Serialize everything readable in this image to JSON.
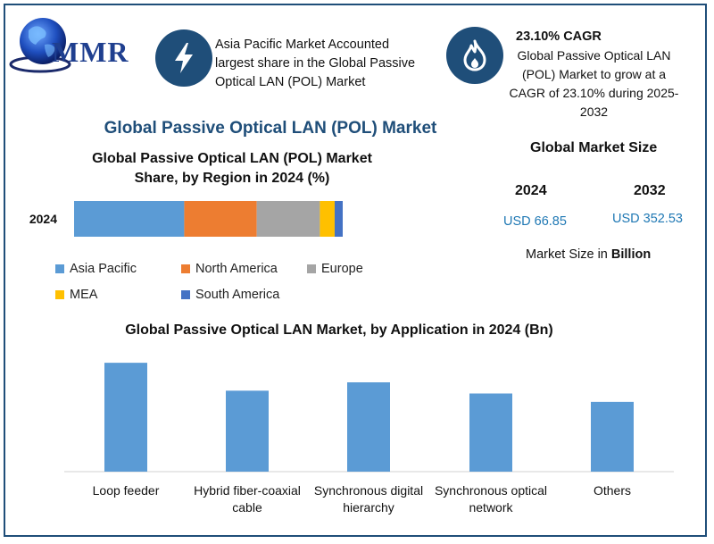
{
  "logo": {
    "text": "MMR"
  },
  "header": {
    "info_text": "Asia Pacific Market Accounted largest share in the Global Passive Optical LAN (POL) Market",
    "cagr_title": "23.10% CAGR",
    "cagr_desc": "Global Passive Optical LAN (POL) Market to grow at a CAGR of 23.10% during 2025-2032",
    "bolt_icon": "lightning-bolt-icon",
    "flame_icon": "flame-icon"
  },
  "main_title": "Global Passive Optical LAN (POL) Market",
  "market_size": {
    "title": "Global Market Size",
    "year_a": "2024",
    "year_b": "2032",
    "value_a": "USD 66.85",
    "value_b": "USD 352.53",
    "note_prefix": "Market Size in ",
    "note_unit": "Billion"
  },
  "colors": {
    "brand": "#1f4e79",
    "asia_pacific": "#5b9bd5",
    "north_america": "#ed7d31",
    "europe": "#a5a5a5",
    "mea": "#ffc000",
    "south_america": "#4472c4"
  },
  "chart_data": [
    {
      "type": "bar",
      "orientation": "horizontal-stacked",
      "title": "Global Passive Optical LAN (POL) Market Share, by Region in 2024 (%)",
      "title_line1": "Global Passive Optical LAN (POL) Market",
      "title_line2": "Share, by Region in 2024 (%)",
      "categories": [
        "2024"
      ],
      "series": [
        {
          "name": "Asia Pacific",
          "values": [
            41
          ]
        },
        {
          "name": "North America",
          "values": [
            27
          ]
        },
        {
          "name": "Europe",
          "values": [
            23.5
          ]
        },
        {
          "name": "MEA",
          "values": [
            5.5
          ]
        },
        {
          "name": "South America",
          "values": [
            3
          ]
        }
      ],
      "xlim": [
        0,
        100
      ],
      "legend": "bottom"
    },
    {
      "type": "bar",
      "title": "Global Passive Optical LAN Market, by Application in 2024 (Bn)",
      "categories": [
        "Loop feeder",
        "Hybrid fiber-coaxial cable",
        "Synchronous digital hierarchy",
        "Synchronous optical network",
        "Others"
      ],
      "values": [
        19.5,
        14.5,
        16.0,
        14.0,
        12.5
      ],
      "ylim": [
        0,
        20
      ],
      "grid": false
    }
  ]
}
